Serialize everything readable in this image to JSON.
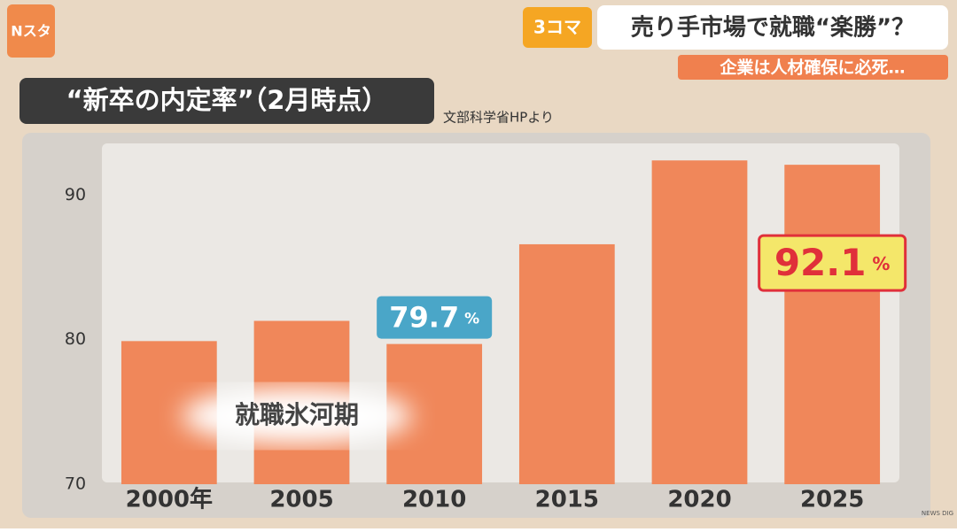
{
  "chart_data": {
    "type": "bar",
    "title": "“新卒の内定率”（2月時点）",
    "source": "文部科学省HPより",
    "annotation": "就職氷河期",
    "categories": [
      "2000年",
      "2005",
      "2010",
      "2015",
      "2020",
      "2025"
    ],
    "values": [
      79.9,
      81.3,
      79.7,
      86.6,
      92.4,
      92.1
    ],
    "value_labels": [
      null,
      null,
      "79.7%",
      null,
      null,
      "92.1%"
    ],
    "color": "#f0875a",
    "ylim": [
      70,
      93.7
    ],
    "yticks": [
      70,
      80,
      90
    ],
    "grid": false
  },
  "header": {
    "logo": "Nスタ",
    "badge": "3コマ",
    "headline": "売り手市場で就職“楽勝”？",
    "subheadline": "企業は人材確保に必死…",
    "watermark": "NEWS DIG"
  }
}
